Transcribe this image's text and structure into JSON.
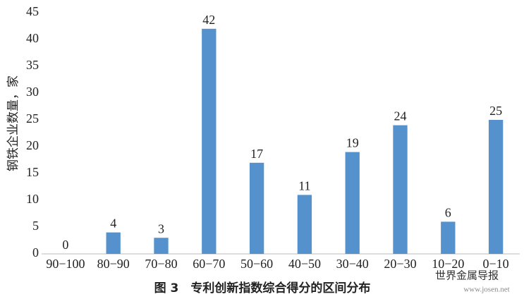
{
  "chart_data": {
    "type": "bar",
    "y_label": "钢铁企业数量，家",
    "caption": "图 3　专利创新指数综合得分的区间分布",
    "watermark": "世界金属导报",
    "watermark_url": "www.josen.net",
    "categories": [
      "90−100",
      "80−90",
      "70−80",
      "60−70",
      "50−60",
      "40−50",
      "30−40",
      "20−30",
      "10−20",
      "0−10"
    ],
    "values": [
      0,
      4,
      3,
      42,
      17,
      11,
      19,
      24,
      6,
      25
    ],
    "color": "#5592cd",
    "ylim": [
      0,
      45
    ],
    "yticks": [
      0,
      5,
      10,
      15,
      20,
      25,
      30,
      35,
      40,
      45
    ],
    "grid": false
  }
}
